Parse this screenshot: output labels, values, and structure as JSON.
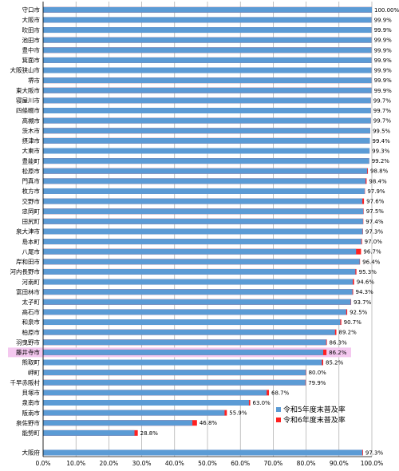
{
  "chart_data": {
    "type": "bar",
    "orientation": "horizontal",
    "stacked": true,
    "xlim": [
      0,
      100
    ],
    "x_ticks": [
      "0.0%",
      "10.0%",
      "20.0%",
      "30.0%",
      "40.0%",
      "50.0%",
      "60.0%",
      "70.0%",
      "80.0%",
      "90.0%",
      "100.0%"
    ],
    "highlight_category": "藤井寺市",
    "colors": {
      "r5": "#5b9bd5",
      "r6": "#ff2020"
    },
    "series": [
      {
        "name": "令和5年度末普及率"
      },
      {
        "name": "令和6年度末普及率"
      }
    ],
    "rows": [
      {
        "label": "守口市",
        "r5": 100.0,
        "r6": 100.0,
        "text": "100.00%"
      },
      {
        "label": "大阪市",
        "r5": 99.9,
        "r6": 99.9,
        "text": "99.9%"
      },
      {
        "label": "吹田市",
        "r5": 99.9,
        "r6": 99.9,
        "text": "99.9%"
      },
      {
        "label": "池田市",
        "r5": 99.9,
        "r6": 99.9,
        "text": "99.9%"
      },
      {
        "label": "豊中市",
        "r5": 99.9,
        "r6": 99.9,
        "text": "99.9%"
      },
      {
        "label": "箕面市",
        "r5": 99.9,
        "r6": 99.9,
        "text": "99.9%"
      },
      {
        "label": "大阪狭山市",
        "r5": 99.9,
        "r6": 99.9,
        "text": "99.9%"
      },
      {
        "label": "堺市",
        "r5": 99.9,
        "r6": 99.9,
        "text": "99.9%"
      },
      {
        "label": "東大阪市",
        "r5": 99.9,
        "r6": 99.9,
        "text": "99.9%"
      },
      {
        "label": "寝屋川市",
        "r5": 99.7,
        "r6": 99.7,
        "text": "99.7%"
      },
      {
        "label": "四條畷市",
        "r5": 99.7,
        "r6": 99.7,
        "text": "99.7%"
      },
      {
        "label": "高槻市",
        "r5": 99.7,
        "r6": 99.7,
        "text": "99.7%"
      },
      {
        "label": "茨木市",
        "r5": 99.5,
        "r6": 99.5,
        "text": "99.5%"
      },
      {
        "label": "摂津市",
        "r5": 99.4,
        "r6": 99.4,
        "text": "99.4%"
      },
      {
        "label": "大東市",
        "r5": 99.3,
        "r6": 99.3,
        "text": "99.3%"
      },
      {
        "label": "豊能町",
        "r5": 99.2,
        "r6": 99.2,
        "text": "99.2%"
      },
      {
        "label": "松原市",
        "r5": 98.6,
        "r6": 98.8,
        "text": "98.8%"
      },
      {
        "label": "門真市",
        "r5": 98.1,
        "r6": 98.4,
        "text": "98.4%"
      },
      {
        "label": "枚方市",
        "r5": 97.8,
        "r6": 97.9,
        "text": "97.9%"
      },
      {
        "label": "交野市",
        "r5": 97.1,
        "r6": 97.6,
        "text": "97.6%"
      },
      {
        "label": "忠岡町",
        "r5": 97.4,
        "r6": 97.5,
        "text": "97.5%"
      },
      {
        "label": "田尻町",
        "r5": 97.3,
        "r6": 97.4,
        "text": "97.4%"
      },
      {
        "label": "泉大津市",
        "r5": 97.2,
        "r6": 97.3,
        "text": "97.3%"
      },
      {
        "label": "島本町",
        "r5": 96.8,
        "r6": 97.0,
        "text": "97.0%"
      },
      {
        "label": "八尾市",
        "r5": 95.2,
        "r6": 96.7,
        "text": "96.7%"
      },
      {
        "label": "岸和田市",
        "r5": 96.3,
        "r6": 96.4,
        "text": "96.4%"
      },
      {
        "label": "河内長野市",
        "r5": 95.0,
        "r6": 95.3,
        "text": "95.3%"
      },
      {
        "label": "河南町",
        "r5": 94.2,
        "r6": 94.6,
        "text": "94.6%"
      },
      {
        "label": "富田林市",
        "r5": 94.1,
        "r6": 94.3,
        "text": "94.3%"
      },
      {
        "label": "太子町",
        "r5": 93.6,
        "r6": 93.7,
        "text": "93.7%"
      },
      {
        "label": "高石市",
        "r5": 92.2,
        "r6": 92.5,
        "text": "92.5%"
      },
      {
        "label": "和泉市",
        "r5": 90.4,
        "r6": 90.7,
        "text": "90.7%"
      },
      {
        "label": "柏原市",
        "r5": 88.8,
        "r6": 89.2,
        "text": "89.2%"
      },
      {
        "label": "羽曳野市",
        "r5": 86.1,
        "r6": 86.3,
        "text": "86.3%"
      },
      {
        "label": "藤井寺市",
        "r5": 85.2,
        "r6": 86.2,
        "text": "86.2%"
      },
      {
        "label": "熊取町",
        "r5": 84.8,
        "r6": 85.2,
        "text": "85.2%"
      },
      {
        "label": "岬町",
        "r5": 79.9,
        "r6": 80.0,
        "text": "80.0%"
      },
      {
        "label": "千早赤阪村",
        "r5": 79.8,
        "r6": 79.9,
        "text": "79.9%"
      },
      {
        "label": "貝塚市",
        "r5": 68.0,
        "r6": 68.7,
        "text": "68.7%"
      },
      {
        "label": "泉南市",
        "r5": 62.6,
        "r6": 63.0,
        "text": "63.0%"
      },
      {
        "label": "阪南市",
        "r5": 55.2,
        "r6": 55.9,
        "text": "55.9%"
      },
      {
        "label": "泉佐野市",
        "r5": 45.4,
        "r6": 46.8,
        "text": "46.8%"
      },
      {
        "label": "能勢町",
        "r5": 27.8,
        "r6": 28.8,
        "text": "28.8%"
      },
      {
        "label": "大阪府",
        "r5": 97.1,
        "r6": 97.3,
        "text": "97.3%",
        "separate": true
      }
    ]
  }
}
